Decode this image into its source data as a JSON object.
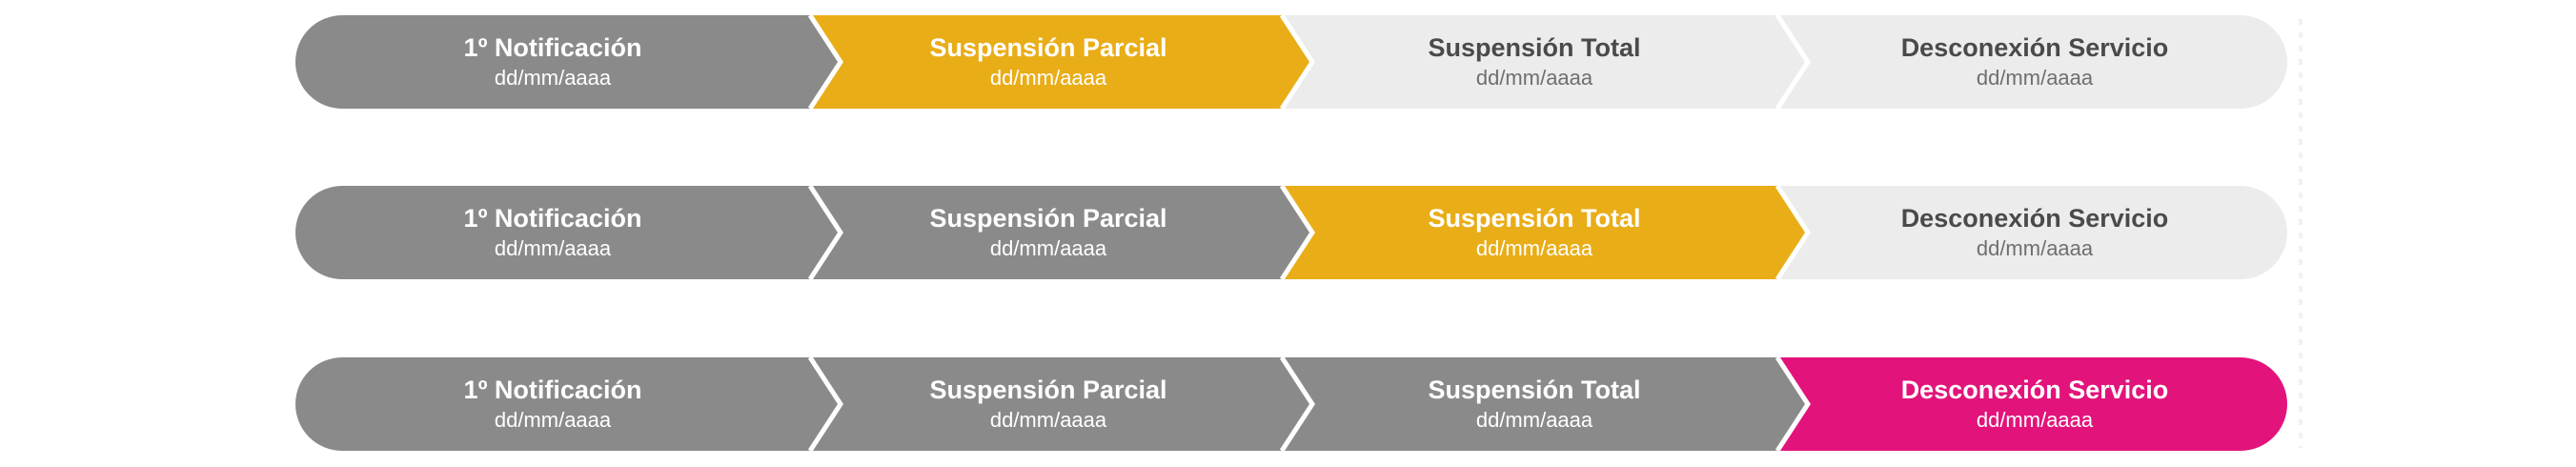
{
  "colors": {
    "done": "#8a8a8a",
    "current": "#e9ad17",
    "final": "#e2147b",
    "pending": "#ececec",
    "separator": "#ffffff"
  },
  "trackers": [
    {
      "steps": [
        {
          "title": "1º Notificación",
          "date": "dd/mm/aaaa",
          "state": "done"
        },
        {
          "title": "Suspensión Parcial",
          "date": "dd/mm/aaaa",
          "state": "current"
        },
        {
          "title": "Suspensión Total",
          "date": "dd/mm/aaaa",
          "state": "pending"
        },
        {
          "title": "Desconexión Servicio",
          "date": "dd/mm/aaaa",
          "state": "pending"
        }
      ]
    },
    {
      "steps": [
        {
          "title": "1º Notificación",
          "date": "dd/mm/aaaa",
          "state": "done"
        },
        {
          "title": "Suspensión Parcial",
          "date": "dd/mm/aaaa",
          "state": "done"
        },
        {
          "title": "Suspensión Total",
          "date": "dd/mm/aaaa",
          "state": "current"
        },
        {
          "title": "Desconexión Servicio",
          "date": "dd/mm/aaaa",
          "state": "pending"
        }
      ]
    },
    {
      "steps": [
        {
          "title": "1º Notificación",
          "date": "dd/mm/aaaa",
          "state": "done"
        },
        {
          "title": "Suspensión Parcial",
          "date": "dd/mm/aaaa",
          "state": "done"
        },
        {
          "title": "Suspensión Total",
          "date": "dd/mm/aaaa",
          "state": "done"
        },
        {
          "title": "Desconexión Servicio",
          "date": "dd/mm/aaaa",
          "state": "final"
        }
      ]
    }
  ]
}
